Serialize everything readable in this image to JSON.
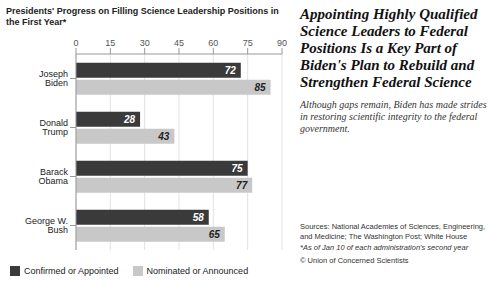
{
  "chart_data": {
    "type": "bar",
    "orientation": "horizontal",
    "title": "Presidents' Progress on Filling Science Leadership Positions in the First Year*",
    "headline": "Appointing Highly Qualified Science Leaders to Federal Positions Is a Key Part of Biden's Plan to Rebuild and Strengthen Federal Science",
    "subtitle": "Although gaps remain, Biden has made strides in restoring scientific integrity to the federal government.",
    "sources": "Sources: National Academies of Sciences, Engineering, and Medicine; The Washington Post; White House",
    "footnote": "*As of Jan 10 of each administration's second year",
    "credit": "© Union of Concerned Scientists",
    "categories": [
      "Joseph Biden",
      "Donald Trump",
      "Barack Obama",
      "George W. Bush"
    ],
    "series": [
      {
        "name": "Confirmed or Appointed",
        "color": "#3a3a3a",
        "values": [
          72,
          28,
          75,
          58
        ]
      },
      {
        "name": "Nominated or Announced",
        "color": "#c8c8c8",
        "values": [
          85,
          43,
          77,
          65
        ]
      }
    ],
    "xlim": [
      0,
      90
    ],
    "xticks": [
      0,
      15,
      30,
      45,
      60,
      75,
      90
    ],
    "grid": true,
    "data_labels": true
  }
}
